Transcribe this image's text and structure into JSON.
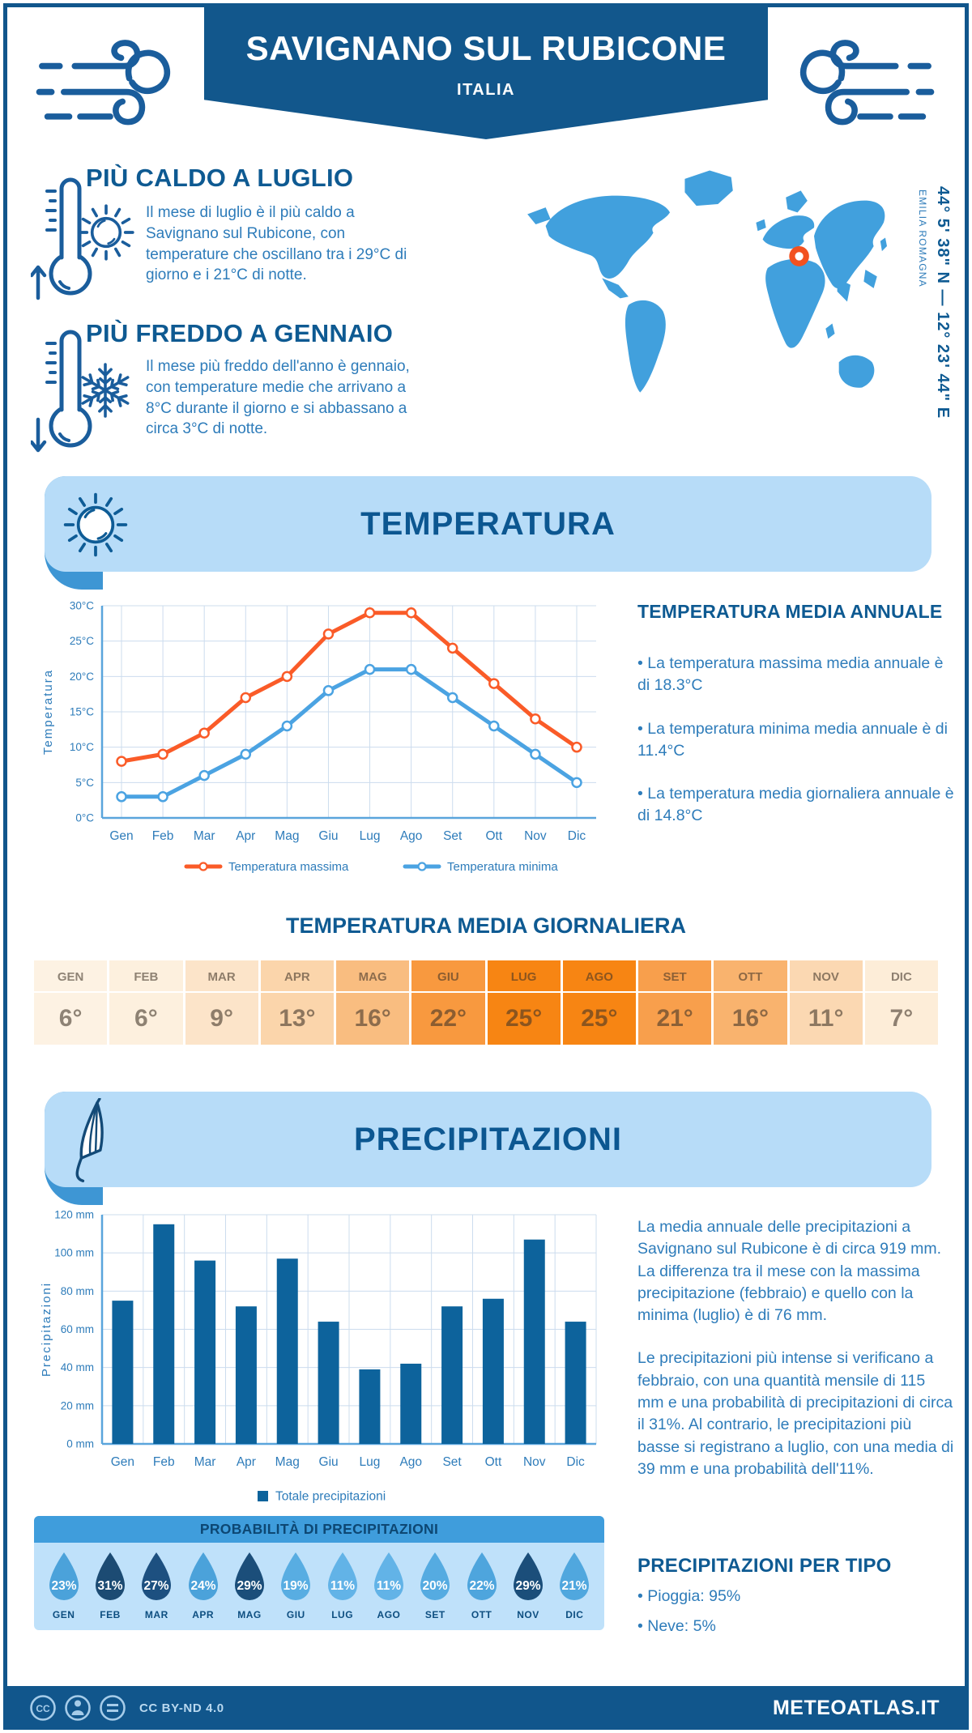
{
  "header": {
    "title": "SAVIGNANO SUL RUBICONE",
    "subtitle": "ITALIA"
  },
  "location": {
    "coordinates": "44° 5' 38\" N — 12° 23' 44\" E",
    "region": "EMILIA ROMAGNA"
  },
  "highlights": {
    "hot": {
      "title": "PIÙ CALDO A LUGLIO",
      "text": "Il mese di luglio è il più caldo a Savignano sul Rubicone, con temperature che oscillano tra i 29°C di giorno e i 21°C di notte."
    },
    "cold": {
      "title": "PIÙ FREDDO A GENNAIO",
      "text": "Il mese più freddo dell'anno è gennaio, con temperature medie che arrivano a 8°C durante il giorno e si abbassano a circa 3°C di notte."
    }
  },
  "temperature_section": {
    "title": "TEMPERATURA",
    "annual": {
      "title": "TEMPERATURA MEDIA ANNUALE",
      "bullets": [
        "• La temperatura massima media annuale è di 18.3°C",
        "• La temperatura minima media annuale è di 11.4°C",
        "• La temperatura media giornaliera annuale è di 14.8°C"
      ]
    },
    "daily_table": {
      "title": "TEMPERATURA MEDIA GIORNALIERA",
      "months": [
        "GEN",
        "FEB",
        "MAR",
        "APR",
        "MAG",
        "GIU",
        "LUG",
        "AGO",
        "SET",
        "OTT",
        "NOV",
        "DIC"
      ],
      "values": [
        "6°",
        "6°",
        "9°",
        "13°",
        "16°",
        "22°",
        "25°",
        "25°",
        "21°",
        "16°",
        "11°",
        "7°"
      ],
      "cell_colors": [
        "#fdf2e3",
        "#fdf0de",
        "#fce4c9",
        "#fbd5ab",
        "#f9bd80",
        "#f8993f",
        "#f78513",
        "#f78513",
        "#f89f4c",
        "#f9b36e",
        "#fbd8b2",
        "#fdedd8"
      ]
    }
  },
  "precipitation_section": {
    "title": "PRECIPITAZIONI",
    "text1": "La media annuale delle precipitazioni a Savignano sul Rubicone è di circa 919 mm. La differenza tra il mese con la massima precipitazione (febbraio) e quello con la minima (luglio) è di 76 mm.",
    "text2": "Le precipitazioni più intense si verificano a febbraio, con una quantità mensile di 115 mm e una probabilità di precipitazioni di circa il 31%. Al contrario, le precipitazioni più basse si registrano a luglio, con una media di 39 mm e una probabilità dell'11%.",
    "probability": {
      "title": "PROBABILITÀ DI PRECIPITAZIONI",
      "months": [
        "GEN",
        "FEB",
        "MAR",
        "APR",
        "MAG",
        "GIU",
        "LUG",
        "AGO",
        "SET",
        "OTT",
        "NOV",
        "DIC"
      ],
      "values": [
        "23%",
        "31%",
        "27%",
        "24%",
        "29%",
        "19%",
        "11%",
        "11%",
        "20%",
        "22%",
        "29%",
        "21%"
      ],
      "drop_colors": [
        "#4ba2da",
        "#1c4b73",
        "#1d5080",
        "#4ba2da",
        "#1b4e7a",
        "#58ade2",
        "#62b3e7",
        "#62b3e7",
        "#55abe1",
        "#4ea5dd",
        "#1b4e7a",
        "#50a7de"
      ]
    },
    "by_type": {
      "title": "PRECIPITAZIONI PER TIPO",
      "bullets": [
        "• Pioggia: 95%",
        "• Neve: 5%"
      ]
    }
  },
  "footer": {
    "license": "CC BY-ND 4.0",
    "site": "METEOATLAS.IT"
  },
  "chart_data": [
    {
      "type": "line",
      "categories": [
        "Gen",
        "Feb",
        "Mar",
        "Apr",
        "Mag",
        "Giu",
        "Lug",
        "Ago",
        "Set",
        "Ott",
        "Nov",
        "Dic"
      ],
      "series": [
        {
          "name": "Temperatura massima",
          "color": "#fa5b28",
          "values": [
            8,
            9,
            12,
            17,
            20,
            26,
            29,
            29,
            24,
            19,
            14,
            10
          ]
        },
        {
          "name": "Temperatura minima",
          "color": "#4ba3e2",
          "values": [
            3,
            3,
            6,
            9,
            13,
            18,
            21,
            21,
            17,
            13,
            9,
            5
          ]
        }
      ],
      "title": "",
      "xlabel": "",
      "ylabel": "Temperatura",
      "ylim": [
        0,
        30
      ],
      "ytick_step": 5,
      "ytick_suffix": "°C",
      "grid": true,
      "legend_position": "bottom"
    },
    {
      "type": "bar",
      "categories": [
        "Gen",
        "Feb",
        "Mar",
        "Apr",
        "Mag",
        "Giu",
        "Lug",
        "Ago",
        "Set",
        "Ott",
        "Nov",
        "Dic"
      ],
      "series": [
        {
          "name": "Totale precipitazioni",
          "color": "#0d639c",
          "values": [
            75,
            115,
            96,
            72,
            97,
            64,
            39,
            42,
            72,
            76,
            107,
            64
          ]
        }
      ],
      "title": "",
      "xlabel": "",
      "ylabel": "Precipitazioni",
      "ylim": [
        0,
        120
      ],
      "ytick_step": 20,
      "ytick_suffix": " mm",
      "grid": true,
      "legend_position": "bottom"
    }
  ]
}
